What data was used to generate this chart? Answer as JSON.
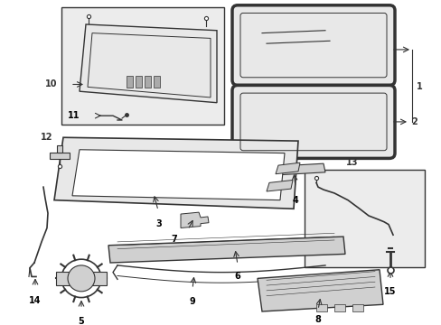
{
  "background_color": "#ffffff",
  "line_color": "#333333",
  "label_color": "#000000",
  "gray_fill": "#d0d0d0",
  "light_fill": "#e8e8e8",
  "box_fill": "#ececec",
  "fig_w": 4.89,
  "fig_h": 3.6,
  "dpi": 100
}
